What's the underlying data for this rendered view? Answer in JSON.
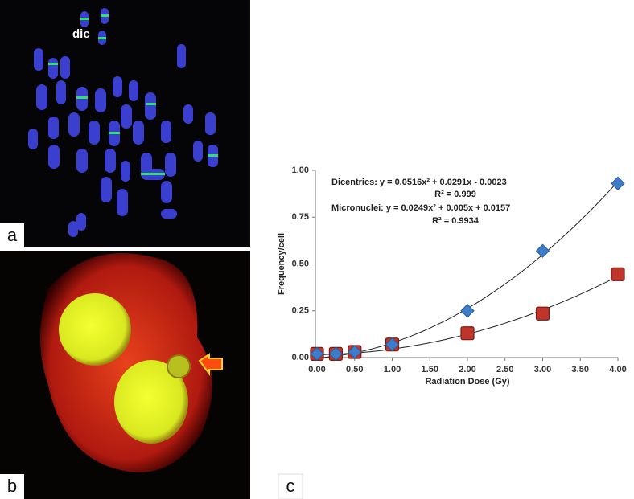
{
  "panel_labels": [
    "a",
    "b",
    "c"
  ],
  "image_annotation": "dic",
  "chart_data": {
    "type": "scatter",
    "x_label": "Radiation Dose (Gy)",
    "y_label": "Frequency/cell",
    "xlim": [
      0,
      4
    ],
    "ylim": [
      0,
      1
    ],
    "xticks": [
      {
        "value": 0,
        "label": "0.00"
      },
      {
        "value": 0.5,
        "label": "0.50"
      },
      {
        "value": 1,
        "label": "1.00"
      },
      {
        "value": 1.5,
        "label": "1.50"
      },
      {
        "value": 2,
        "label": "2.00"
      },
      {
        "value": 2.5,
        "label": "2.50"
      },
      {
        "value": 3,
        "label": "3.00"
      },
      {
        "value": 3.5,
        "label": "3.50"
      },
      {
        "value": 4,
        "label": "4.00"
      }
    ],
    "yticks": [
      {
        "value": 0,
        "label": "0.00"
      },
      {
        "value": 0.25,
        "label": "0.25"
      },
      {
        "value": 0.5,
        "label": "0.50"
      },
      {
        "value": 0.75,
        "label": "0.75"
      },
      {
        "value": 1,
        "label": "1.00"
      }
    ],
    "annotations": [
      "Dicentrics: y = 0.0516x² + 0.0291x - 0.0023",
      "R² = 0.999",
      "Micronuclei: y = 0.0249x² + 0.005x + 0.0157",
      "R² = 0.9934"
    ],
    "series": [
      {
        "marker": "diamond",
        "color": "#3d7cc9",
        "x": [
          0,
          0.25,
          0.5,
          1,
          2,
          3,
          4
        ],
        "values": [
          0.02,
          0.02,
          0.03,
          0.07,
          0.25,
          0.57,
          0.93
        ],
        "trendline": [
          0.0516,
          0.0291,
          -0.0023
        ]
      },
      {
        "marker": "square",
        "color": "#c0352b",
        "x": [
          0,
          0.25,
          0.5,
          1,
          2,
          3,
          4
        ],
        "values": [
          0.02,
          0.02,
          0.03,
          0.07,
          0.13,
          0.235,
          0.445
        ],
        "trendline": [
          0.0249,
          0.005,
          0.0157
        ]
      }
    ]
  }
}
